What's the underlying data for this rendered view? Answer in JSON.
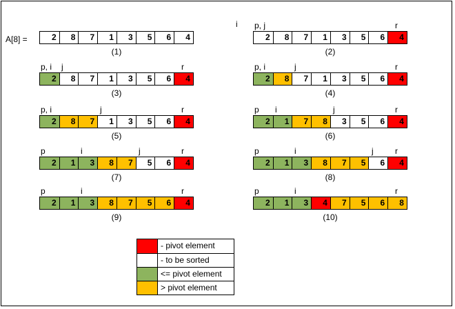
{
  "array_label": "A[8] =",
  "steps": [
    {
      "caption": "(1)",
      "pointers": [],
      "cells": [
        {
          "v": "2",
          "s": "none"
        },
        {
          "v": "8",
          "s": "none"
        },
        {
          "v": "7",
          "s": "none"
        },
        {
          "v": "1",
          "s": "none"
        },
        {
          "v": "3",
          "s": "none"
        },
        {
          "v": "5",
          "s": "none"
        },
        {
          "v": "6",
          "s": "none"
        },
        {
          "v": "4",
          "s": "none"
        }
      ]
    },
    {
      "caption": "(2)",
      "pointers": [
        {
          "label": "i",
          "cell": -1
        },
        {
          "label": "p, j",
          "cell": 0
        },
        {
          "label": "r",
          "cell": 7
        }
      ],
      "cells": [
        {
          "v": "2",
          "s": "none"
        },
        {
          "v": "8",
          "s": "none"
        },
        {
          "v": "7",
          "s": "none"
        },
        {
          "v": "1",
          "s": "none"
        },
        {
          "v": "3",
          "s": "none"
        },
        {
          "v": "5",
          "s": "none"
        },
        {
          "v": "6",
          "s": "none"
        },
        {
          "v": "4",
          "s": "pivot"
        }
      ]
    },
    {
      "caption": "(3)",
      "pointers": [
        {
          "label": "p, i",
          "cell": 0
        },
        {
          "label": "j",
          "cell": 1
        },
        {
          "label": "r",
          "cell": 7
        }
      ],
      "cells": [
        {
          "v": "2",
          "s": "le"
        },
        {
          "v": "8",
          "s": "none"
        },
        {
          "v": "7",
          "s": "none"
        },
        {
          "v": "1",
          "s": "none"
        },
        {
          "v": "3",
          "s": "none"
        },
        {
          "v": "5",
          "s": "none"
        },
        {
          "v": "6",
          "s": "none"
        },
        {
          "v": "4",
          "s": "pivot"
        }
      ]
    },
    {
      "caption": "(4)",
      "pointers": [
        {
          "label": "p, i",
          "cell": 0
        },
        {
          "label": "j",
          "cell": 2
        },
        {
          "label": "r",
          "cell": 7
        }
      ],
      "cells": [
        {
          "v": "2",
          "s": "le"
        },
        {
          "v": "8",
          "s": "gt"
        },
        {
          "v": "7",
          "s": "none"
        },
        {
          "v": "1",
          "s": "none"
        },
        {
          "v": "3",
          "s": "none"
        },
        {
          "v": "5",
          "s": "none"
        },
        {
          "v": "6",
          "s": "none"
        },
        {
          "v": "4",
          "s": "pivot"
        }
      ]
    },
    {
      "caption": "(5)",
      "pointers": [
        {
          "label": "p, i",
          "cell": 0
        },
        {
          "label": "j",
          "cell": 3
        },
        {
          "label": "r",
          "cell": 7
        }
      ],
      "cells": [
        {
          "v": "2",
          "s": "le"
        },
        {
          "v": "8",
          "s": "gt"
        },
        {
          "v": "7",
          "s": "gt"
        },
        {
          "v": "1",
          "s": "none"
        },
        {
          "v": "3",
          "s": "none"
        },
        {
          "v": "5",
          "s": "none"
        },
        {
          "v": "6",
          "s": "none"
        },
        {
          "v": "4",
          "s": "pivot"
        }
      ]
    },
    {
      "caption": "(6)",
      "pointers": [
        {
          "label": "p",
          "cell": 0
        },
        {
          "label": "i",
          "cell": 1
        },
        {
          "label": "j",
          "cell": 4
        },
        {
          "label": "r",
          "cell": 7
        }
      ],
      "cells": [
        {
          "v": "2",
          "s": "le"
        },
        {
          "v": "1",
          "s": "le"
        },
        {
          "v": "7",
          "s": "gt"
        },
        {
          "v": "8",
          "s": "gt"
        },
        {
          "v": "3",
          "s": "none"
        },
        {
          "v": "5",
          "s": "none"
        },
        {
          "v": "6",
          "s": "none"
        },
        {
          "v": "4",
          "s": "pivot"
        }
      ]
    },
    {
      "caption": "(7)",
      "pointers": [
        {
          "label": "p",
          "cell": 0
        },
        {
          "label": "i",
          "cell": 2
        },
        {
          "label": "j",
          "cell": 5
        },
        {
          "label": "r",
          "cell": 7
        }
      ],
      "cells": [
        {
          "v": "2",
          "s": "le"
        },
        {
          "v": "1",
          "s": "le"
        },
        {
          "v": "3",
          "s": "le"
        },
        {
          "v": "8",
          "s": "gt"
        },
        {
          "v": "7",
          "s": "gt"
        },
        {
          "v": "5",
          "s": "none"
        },
        {
          "v": "6",
          "s": "none"
        },
        {
          "v": "4",
          "s": "pivot"
        }
      ]
    },
    {
      "caption": "(8)",
      "pointers": [
        {
          "label": "p",
          "cell": 0
        },
        {
          "label": "i",
          "cell": 2
        },
        {
          "label": "j",
          "cell": 6
        },
        {
          "label": "r",
          "cell": 7
        }
      ],
      "cells": [
        {
          "v": "2",
          "s": "le"
        },
        {
          "v": "1",
          "s": "le"
        },
        {
          "v": "3",
          "s": "le"
        },
        {
          "v": "8",
          "s": "gt"
        },
        {
          "v": "7",
          "s": "gt"
        },
        {
          "v": "5",
          "s": "gt"
        },
        {
          "v": "6",
          "s": "none"
        },
        {
          "v": "4",
          "s": "pivot"
        }
      ]
    },
    {
      "caption": "(9)",
      "pointers": [
        {
          "label": "p",
          "cell": 0
        },
        {
          "label": "i",
          "cell": 2
        },
        {
          "label": "r",
          "cell": 7
        }
      ],
      "cells": [
        {
          "v": "2",
          "s": "le"
        },
        {
          "v": "1",
          "s": "le"
        },
        {
          "v": "3",
          "s": "le"
        },
        {
          "v": "8",
          "s": "gt"
        },
        {
          "v": "7",
          "s": "gt"
        },
        {
          "v": "5",
          "s": "gt"
        },
        {
          "v": "6",
          "s": "gt"
        },
        {
          "v": "4",
          "s": "pivot"
        }
      ]
    },
    {
      "caption": "(10)",
      "pointers": [
        {
          "label": "p",
          "cell": 0
        },
        {
          "label": "i",
          "cell": 2
        },
        {
          "label": "r",
          "cell": 7
        }
      ],
      "cells": [
        {
          "v": "2",
          "s": "le"
        },
        {
          "v": "1",
          "s": "le"
        },
        {
          "v": "3",
          "s": "le"
        },
        {
          "v": "4",
          "s": "pivot"
        },
        {
          "v": "7",
          "s": "gt"
        },
        {
          "v": "5",
          "s": "gt"
        },
        {
          "v": "6",
          "s": "gt"
        },
        {
          "v": "8",
          "s": "gt"
        }
      ]
    }
  ],
  "legend": [
    {
      "state": "pivot",
      "label": "- pivot element"
    },
    {
      "state": "none",
      "label": "- to be sorted"
    },
    {
      "state": "le",
      "label": "<= pivot element"
    },
    {
      "state": "gt",
      "label": "> pivot element"
    }
  ],
  "colors": {
    "pivot": "#ff0000",
    "none": "#ffffff",
    "le": "#8db45e",
    "gt": "#ffc000"
  }
}
